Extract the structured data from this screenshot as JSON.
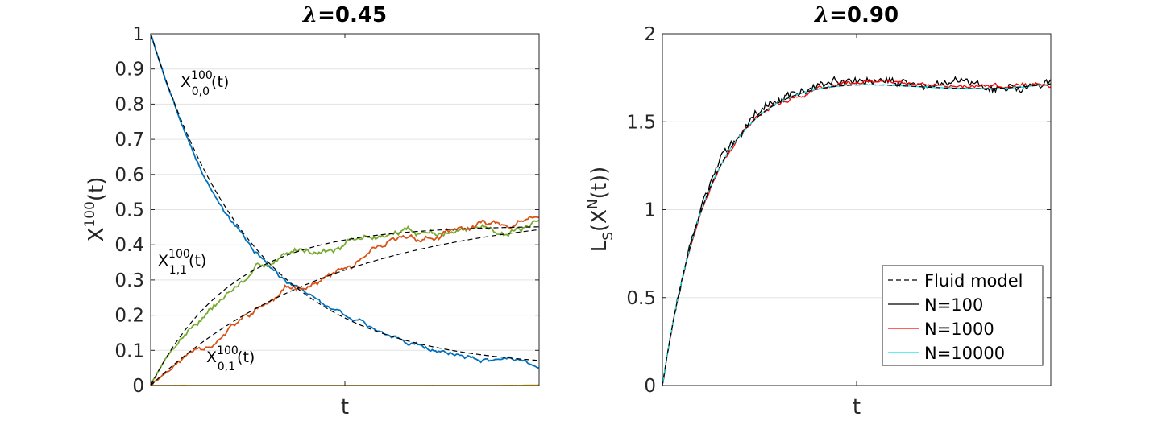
{
  "chart_data": [
    {
      "type": "line",
      "title_symbol": "λ",
      "title_value": "=0.45",
      "xlabel": "t",
      "ylabel_main": "X",
      "ylabel_sup": "100",
      "ylabel_tail": "(t)",
      "ylim": [
        0,
        1
      ],
      "yticks": [
        "0",
        "0.1",
        "0.2",
        "0.3",
        "0.4",
        "0.5",
        "0.6",
        "0.7",
        "0.8",
        "0.9",
        "1"
      ],
      "grid": "y-only",
      "annotations": [
        {
          "base": "X",
          "sup": "100",
          "sub": "0,0",
          "tail": "(t)"
        },
        {
          "base": "X",
          "sup": "100",
          "sub": "1,1",
          "tail": "(t)"
        },
        {
          "base": "X",
          "sup": "100",
          "sub": "0,1",
          "tail": "(t)"
        }
      ],
      "series": [
        {
          "color": "#0072BD",
          "fluid": {
            "a": 0.05,
            "b": 0.95,
            "rate": 3.8
          },
          "seed": 3,
          "noise": 0.004
        },
        {
          "color": "#77AC30",
          "fluid": {
            "a": 0.455,
            "b": -0.455,
            "rate": 4.8
          },
          "seed": 7,
          "noise": 0.006
        },
        {
          "color": "#D95319",
          "fluid": {
            "a": 0.505,
            "b": -0.505,
            "rate": 2.1
          },
          "seed": 11,
          "noise": 0.006
        },
        {
          "color": "#EDB120",
          "fluid": {
            "a": 0.0,
            "b": 0.0,
            "rate": 1
          },
          "seed": 5,
          "noise": 0.0003
        }
      ],
      "fluid_model_color": "#000000",
      "x": {
        "min": 0,
        "max": 1,
        "points": 240
      }
    },
    {
      "type": "line",
      "title_symbol": "λ",
      "title_value": "=0.90",
      "xlabel": "t",
      "ylabel_main": "L",
      "ylabel_sub": "S",
      "ylabel_mid": "(X",
      "ylabel_sup": "N",
      "ylabel_tail": "(t))",
      "ylim": [
        0,
        2
      ],
      "yticks": [
        "0",
        "0.5",
        "1",
        "1.5",
        "2"
      ],
      "grid": "y-only",
      "legend": {
        "position": "bottom-right",
        "entries": [
          {
            "label": "Fluid model",
            "color": "#000000",
            "style": "dashed"
          },
          {
            "label": "N=100",
            "color": "#000000",
            "style": "solid"
          },
          {
            "label": "N=1000",
            "color": "#ff0000",
            "style": "solid"
          },
          {
            "label": "N=10000",
            "color": "#00e5ee",
            "style": "solid"
          }
        ]
      },
      "fluid": {
        "plateau": 1.73,
        "rate": 8.5
      },
      "series": [
        {
          "label": "N=100",
          "color": "#000000",
          "seed": 13,
          "noise": 0.035,
          "wander": 0.06
        },
        {
          "label": "N=1000",
          "color": "#ff0000",
          "seed": 17,
          "noise": 0.012,
          "wander": 0.035
        },
        {
          "label": "N=10000",
          "color": "#00e5ee",
          "seed": 19,
          "noise": 0.003,
          "wander": 0.004
        }
      ],
      "x": {
        "min": 0,
        "max": 1,
        "points": 260
      }
    }
  ]
}
